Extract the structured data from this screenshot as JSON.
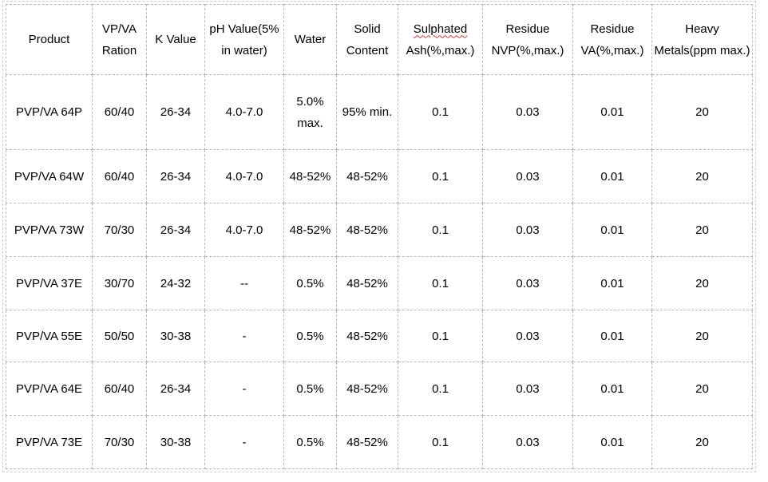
{
  "colors": {
    "text": "#000000",
    "cell_border": "#b8b8b8",
    "frame_border": "#cfcfcf",
    "spellcheck_underline": "#e03030",
    "background": "#ffffff"
  },
  "table": {
    "columns": [
      {
        "id": "product",
        "line1": "Product",
        "line2": ""
      },
      {
        "id": "vpva-ration",
        "line1": "VP/VA",
        "line2": "Ration"
      },
      {
        "id": "k-value",
        "line1": "K Value",
        "line2": ""
      },
      {
        "id": "ph-value",
        "line1": "pH Value(5%",
        "line2": "in water)"
      },
      {
        "id": "water",
        "line1": "Water",
        "line2": ""
      },
      {
        "id": "solid-content",
        "line1": "Solid",
        "line2": "Content"
      },
      {
        "id": "sulphated-ash",
        "line1": "Sulphated",
        "line2": "Ash(%,max.)"
      },
      {
        "id": "residue-nvp",
        "line1": "Residue",
        "line2": "NVP(%,max.)"
      },
      {
        "id": "residue-va",
        "line1": "Residue",
        "line2": "VA(%,max.)"
      },
      {
        "id": "heavy-metals",
        "line1": "Heavy",
        "line2": "Metals(ppm max.)"
      }
    ],
    "rows": [
      {
        "cells": [
          "PVP/VA 64P",
          "60/40",
          "26-34",
          "4.0-7.0",
          "5.0% max.",
          "95% min.",
          "0.1",
          "0.03",
          "0.01",
          "20"
        ]
      },
      {
        "cells": [
          "PVP/VA 64W",
          "60/40",
          "26-34",
          "4.0-7.0",
          "48-52%",
          "48-52%",
          "0.1",
          "0.03",
          "0.01",
          "20"
        ]
      },
      {
        "cells": [
          "PVP/VA 73W",
          "70/30",
          "26-34",
          "4.0-7.0",
          "48-52%",
          "48-52%",
          "0.1",
          "0.03",
          "0.01",
          "20"
        ]
      },
      {
        "cells": [
          "PVP/VA 37E",
          "30/70",
          "24-32",
          "--",
          "0.5%",
          "48-52%",
          "0.1",
          "0.03",
          "0.01",
          "20"
        ]
      },
      {
        "cells": [
          "PVP/VA 55E",
          "50/50",
          "30-38",
          "-",
          "0.5%",
          "48-52%",
          "0.1",
          "0.03",
          "0.01",
          "20"
        ]
      },
      {
        "cells": [
          "PVP/VA 64E",
          "60/40",
          "26-34",
          "-",
          "0.5%",
          "48-52%",
          "0.1",
          "0.03",
          "0.01",
          "20"
        ]
      },
      {
        "cells": [
          "PVP/VA 73E",
          "70/30",
          "30-38",
          "-",
          "0.5%",
          "48-52%",
          "0.1",
          "0.03",
          "0.01",
          "20"
        ]
      }
    ]
  }
}
